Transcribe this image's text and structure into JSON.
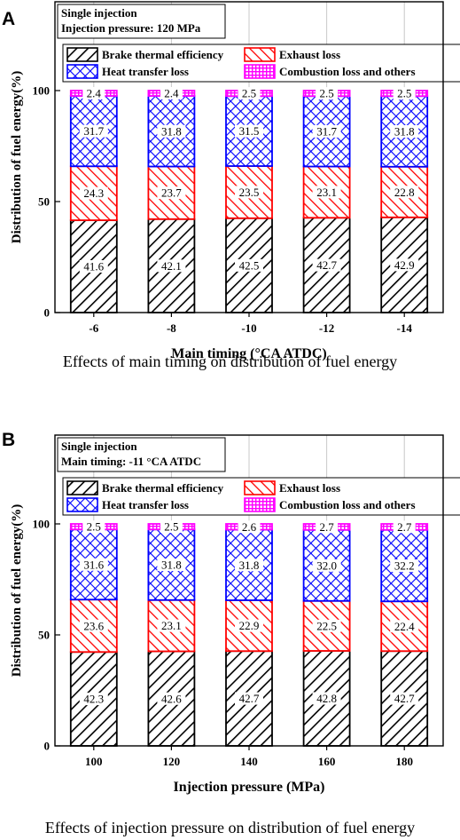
{
  "colors": {
    "bte": "#000000",
    "exhaust": "#ff0000",
    "heat": "#0000ff",
    "combustion": "#ff00ff"
  },
  "legend": {
    "bte": "Brake thermal efficiency",
    "exhaust": "Exhaust loss",
    "heat": "Heat transfer loss",
    "combustion": "Combustion loss and others"
  },
  "panels": [
    {
      "letter": "A",
      "caption": "Effects of main timing on distribution of fuel energy",
      "info": [
        "Single injection",
        "Injection pressure: 120 MPa"
      ]
    },
    {
      "letter": "B",
      "caption": "Effects of injection pressure on distribution of fuel energy",
      "info": [
        "Single injection",
        "Main timing: -11 °CA ATDC"
      ]
    }
  ],
  "chart_data": [
    {
      "type": "bar",
      "stacked": true,
      "xlabel": "Main timing (°CA ATDC)",
      "ylabel": "Distribution of  fuel energy(%)",
      "ylim": [
        0,
        140
      ],
      "yticks": [
        0,
        50,
        100
      ],
      "grid": "vertical",
      "legend_position": "top",
      "categories": [
        "-6",
        "-8",
        "-10",
        "-12",
        "-14"
      ],
      "series": [
        {
          "key": "bte",
          "name": "Brake thermal efficiency",
          "values": [
            41.6,
            42.1,
            42.5,
            42.7,
            42.9
          ]
        },
        {
          "key": "exhaust",
          "name": "Exhaust loss",
          "values": [
            24.3,
            23.7,
            23.5,
            23.1,
            22.8
          ]
        },
        {
          "key": "heat",
          "name": "Heat transfer loss",
          "values": [
            31.7,
            31.8,
            31.5,
            31.7,
            31.8
          ]
        },
        {
          "key": "combustion",
          "name": "Combustion loss and others",
          "values": [
            2.4,
            2.4,
            2.5,
            2.5,
            2.5
          ]
        }
      ]
    },
    {
      "type": "bar",
      "stacked": true,
      "xlabel": "Injection pressure (MPa)",
      "ylabel": "Distribution of  fuel energy(%)",
      "ylim": [
        0,
        140
      ],
      "yticks": [
        0,
        50,
        100
      ],
      "grid": "vertical",
      "legend_position": "top",
      "categories": [
        "100",
        "120",
        "140",
        "160",
        "180"
      ],
      "series": [
        {
          "key": "bte",
          "name": "Brake thermal efficiency",
          "values": [
            42.3,
            42.6,
            42.7,
            42.8,
            42.7
          ]
        },
        {
          "key": "exhaust",
          "name": "Exhaust loss",
          "values": [
            23.6,
            23.1,
            22.9,
            22.5,
            22.4
          ]
        },
        {
          "key": "heat",
          "name": "Heat transfer loss",
          "values": [
            31.6,
            31.8,
            31.8,
            32.0,
            32.2
          ]
        },
        {
          "key": "combustion",
          "name": "Combustion loss and others",
          "values": [
            2.5,
            2.5,
            2.6,
            2.7,
            2.7
          ]
        }
      ]
    }
  ]
}
